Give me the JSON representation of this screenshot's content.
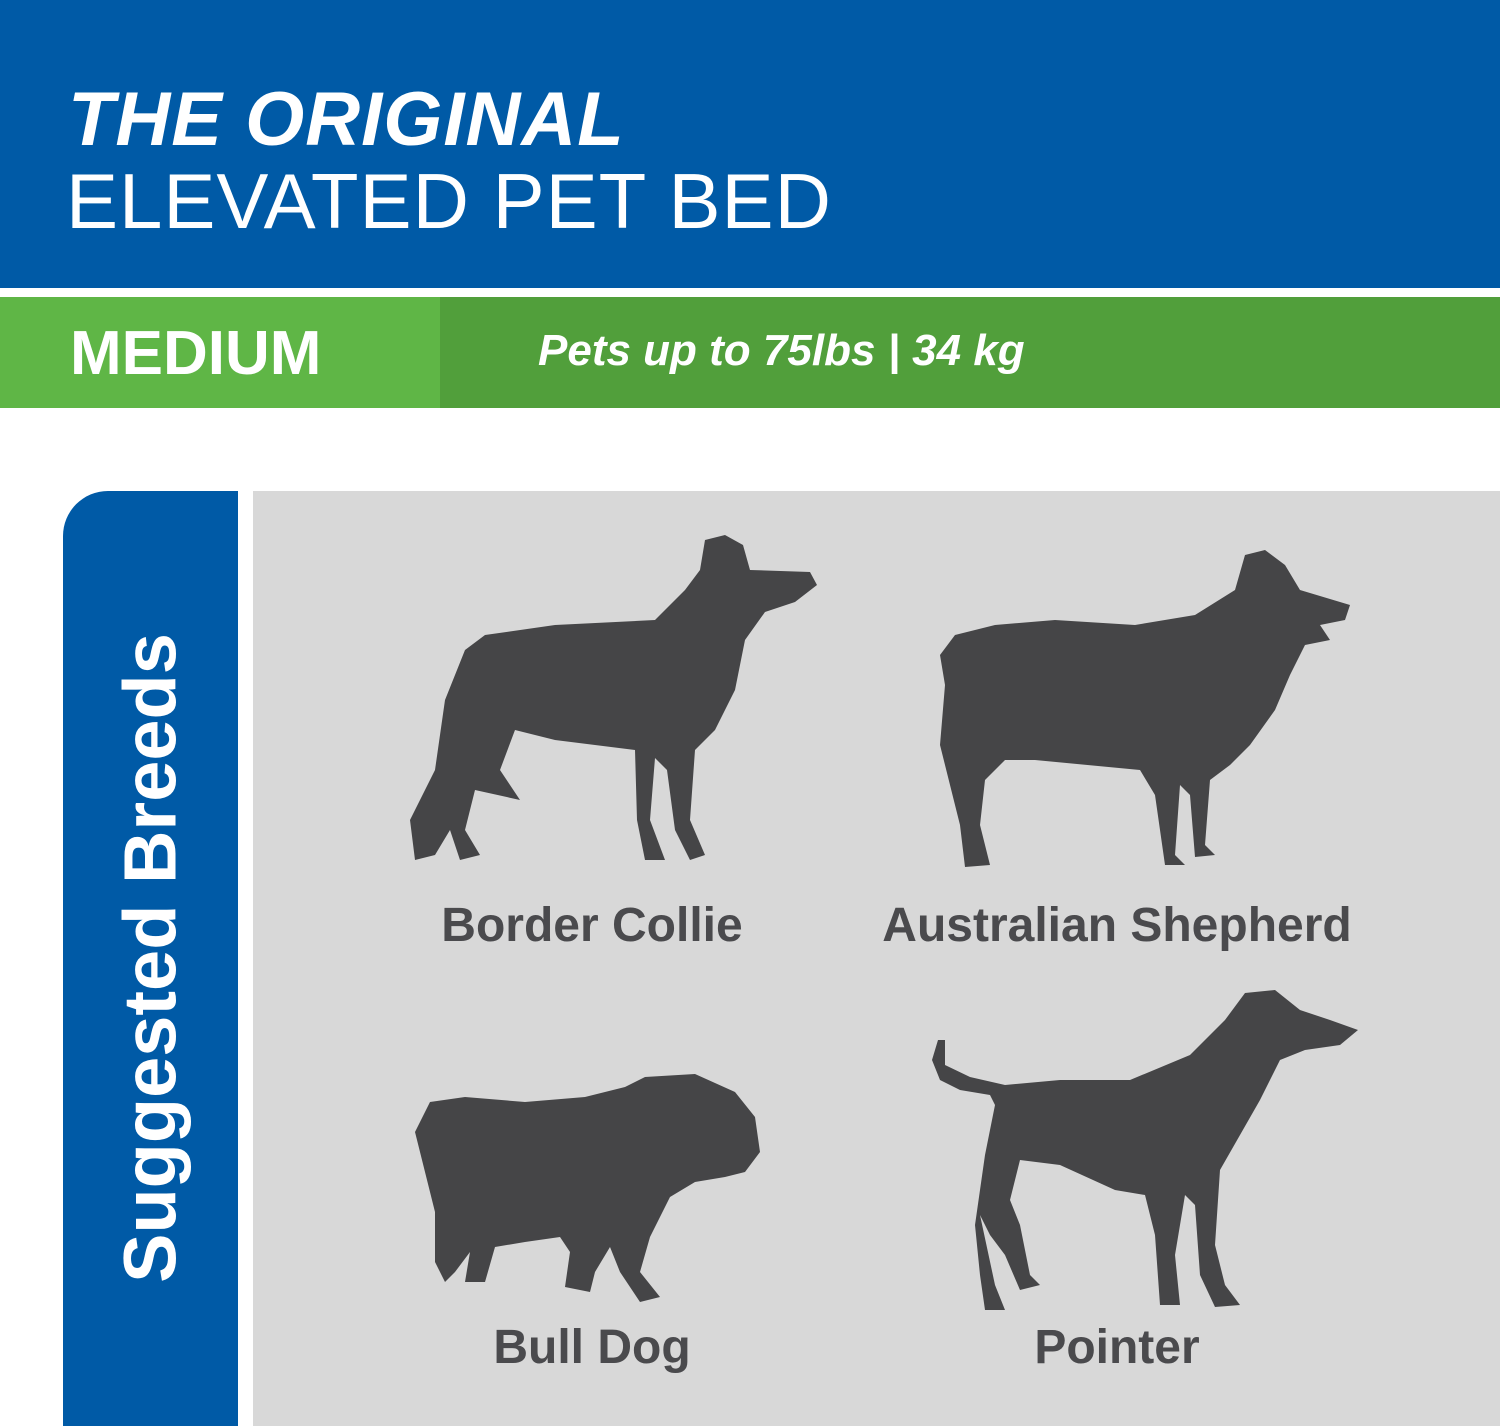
{
  "header": {
    "title_line1": "THE ORIGINAL",
    "title_line2": "ELEVATED PET BED"
  },
  "size_band": {
    "size": "MEDIUM",
    "capacity": "Pets up to 75lbs | 34 kg"
  },
  "breeds_section": {
    "heading": "Suggested Breeds",
    "breeds": [
      {
        "name": "Border Collie",
        "icon": "border-collie-silhouette"
      },
      {
        "name": "Australian Shepherd",
        "icon": "australian-shepherd-silhouette"
      },
      {
        "name": "Bull Dog",
        "icon": "bulldog-silhouette"
      },
      {
        "name": "Pointer",
        "icon": "pointer-silhouette"
      }
    ]
  },
  "colors": {
    "blue": "#005aa6",
    "green_light": "#5fb646",
    "green_dark": "#519f3b",
    "panel_gray": "#d8d8d8",
    "silhouette": "#454547"
  }
}
